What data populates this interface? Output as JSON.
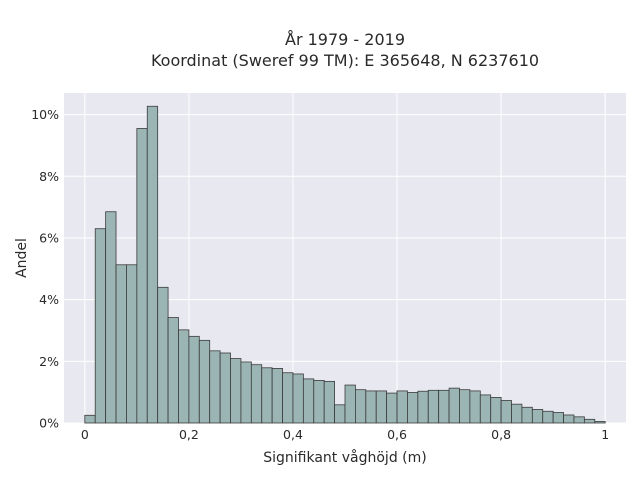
{
  "chart_data": {
    "type": "bar",
    "title": "År 1979 - 2019",
    "subtitle": "Koordinat (Sweref 99 TM): E 365648, N 6237610",
    "xlabel": "Signifikant våghöjd (m)",
    "ylabel": "Andel",
    "xlim": [
      -0.04,
      1.04
    ],
    "ylim": [
      0,
      0.107
    ],
    "x_ticks": [
      0,
      0.2,
      0.4,
      0.6,
      0.8,
      1
    ],
    "x_tick_labels": [
      "0",
      "0,2",
      "0,4",
      "0,6",
      "0,8",
      "1"
    ],
    "y_ticks": [
      0,
      0.02,
      0.04,
      0.06,
      0.08,
      0.1
    ],
    "y_tick_labels": [
      "0%",
      "2%",
      "4%",
      "6%",
      "8%",
      "10%"
    ],
    "grid": true,
    "bin_width": 0.02,
    "bin_start": 0.01,
    "values": [
      0.0025,
      0.063,
      0.0685,
      0.0513,
      0.0513,
      0.0955,
      0.1027,
      0.044,
      0.0342,
      0.0302,
      0.0281,
      0.0268,
      0.0234,
      0.0227,
      0.0209,
      0.0198,
      0.0189,
      0.0179,
      0.0177,
      0.0163,
      0.0159,
      0.0143,
      0.0138,
      0.0135,
      0.0059,
      0.0123,
      0.0108,
      0.0104,
      0.0104,
      0.0097,
      0.0104,
      0.0099,
      0.0103,
      0.0106,
      0.0106,
      0.0113,
      0.0108,
      0.0104,
      0.0091,
      0.0083,
      0.0073,
      0.0061,
      0.0051,
      0.0044,
      0.0038,
      0.0034,
      0.0026,
      0.002,
      0.0012,
      0.0005
    ],
    "colors": {
      "bar_fill": "#9bb5b4",
      "bar_stroke": "#3b3b3b",
      "plot_background": "#e8e8f0",
      "grid": "#ffffff"
    }
  }
}
